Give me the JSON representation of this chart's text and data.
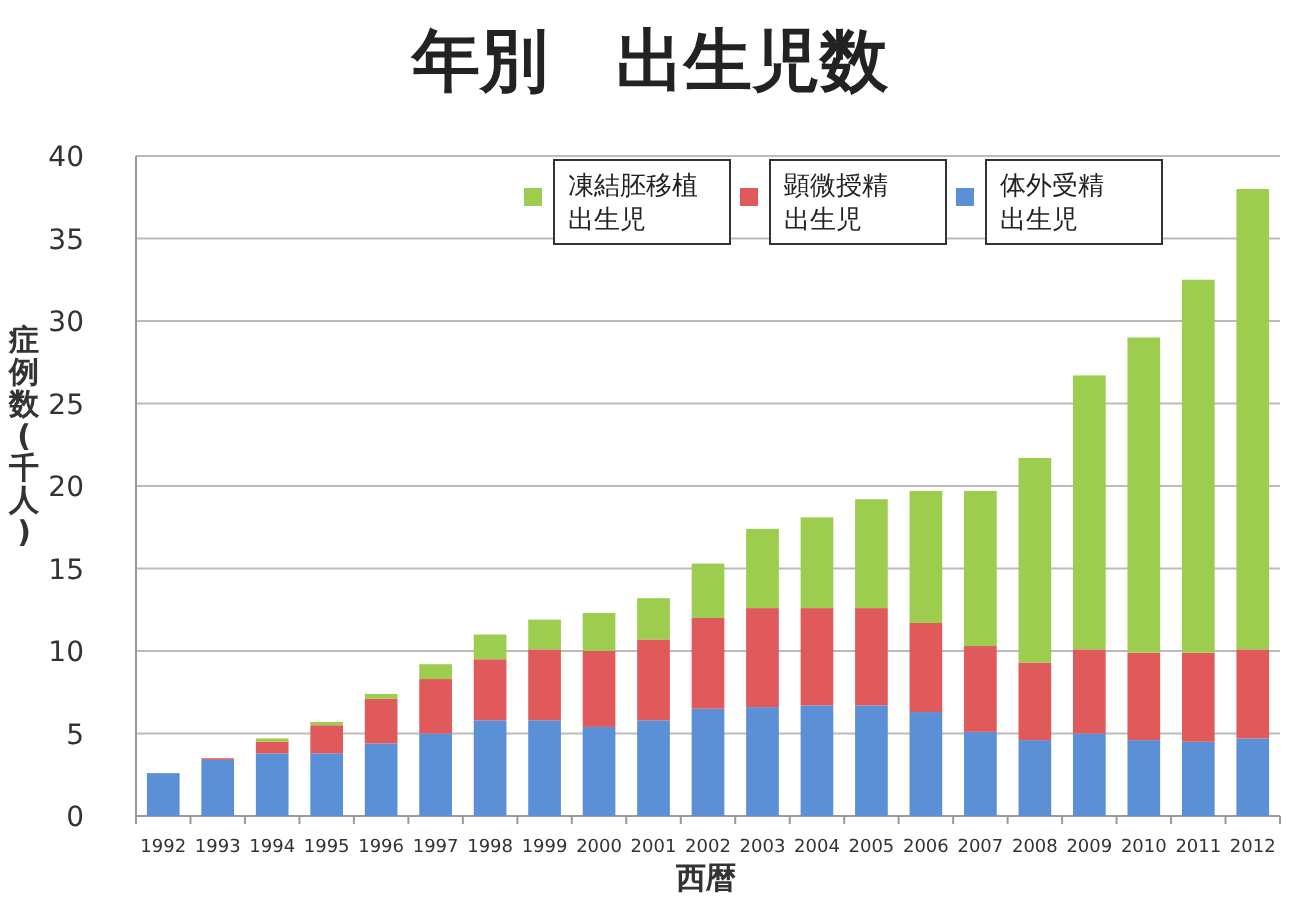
{
  "chart_data": {
    "type": "bar",
    "title": "年別　出生児数",
    "xlabel": "西暦",
    "ylabel": "症例数(千人)",
    "categories": [
      "1992",
      "1993",
      "1994",
      "1995",
      "1996",
      "1997",
      "1998",
      "1999",
      "2000",
      "2001",
      "2002",
      "2003",
      "2004",
      "2005",
      "2006",
      "2007",
      "2008",
      "2009",
      "2010",
      "2011",
      "2012"
    ],
    "stacked": true,
    "ylim": [
      0,
      40
    ],
    "yticks": [
      0,
      5,
      10,
      15,
      20,
      25,
      30,
      35,
      40
    ],
    "grid": "y",
    "legend": "top",
    "series": [
      {
        "name": "体外受精出生児",
        "color": "#5b8fd6",
        "values": [
          2.6,
          3.4,
          3.8,
          3.8,
          4.4,
          5.0,
          5.8,
          5.8,
          5.4,
          5.8,
          6.5,
          6.6,
          6.7,
          6.7,
          6.3,
          5.1,
          4.6,
          5.0,
          4.6,
          4.5,
          4.7
        ]
      },
      {
        "name": "顕微授精出生児",
        "color": "#e0595b",
        "values": [
          0,
          0.1,
          0.7,
          1.7,
          2.7,
          3.3,
          3.7,
          4.3,
          4.6,
          4.9,
          5.5,
          6.0,
          5.9,
          5.9,
          5.4,
          5.2,
          4.7,
          5.1,
          5.3,
          5.4,
          5.4
        ]
      },
      {
        "name": "凍結胚移植出生児",
        "color": "#9ccd4f",
        "values": [
          0,
          0,
          0.2,
          0.2,
          0.3,
          0.9,
          1.5,
          1.8,
          2.3,
          2.5,
          3.3,
          4.8,
          5.5,
          6.6,
          8.0,
          9.4,
          12.4,
          16.6,
          19.1,
          22.6,
          27.9
        ]
      }
    ]
  }
}
